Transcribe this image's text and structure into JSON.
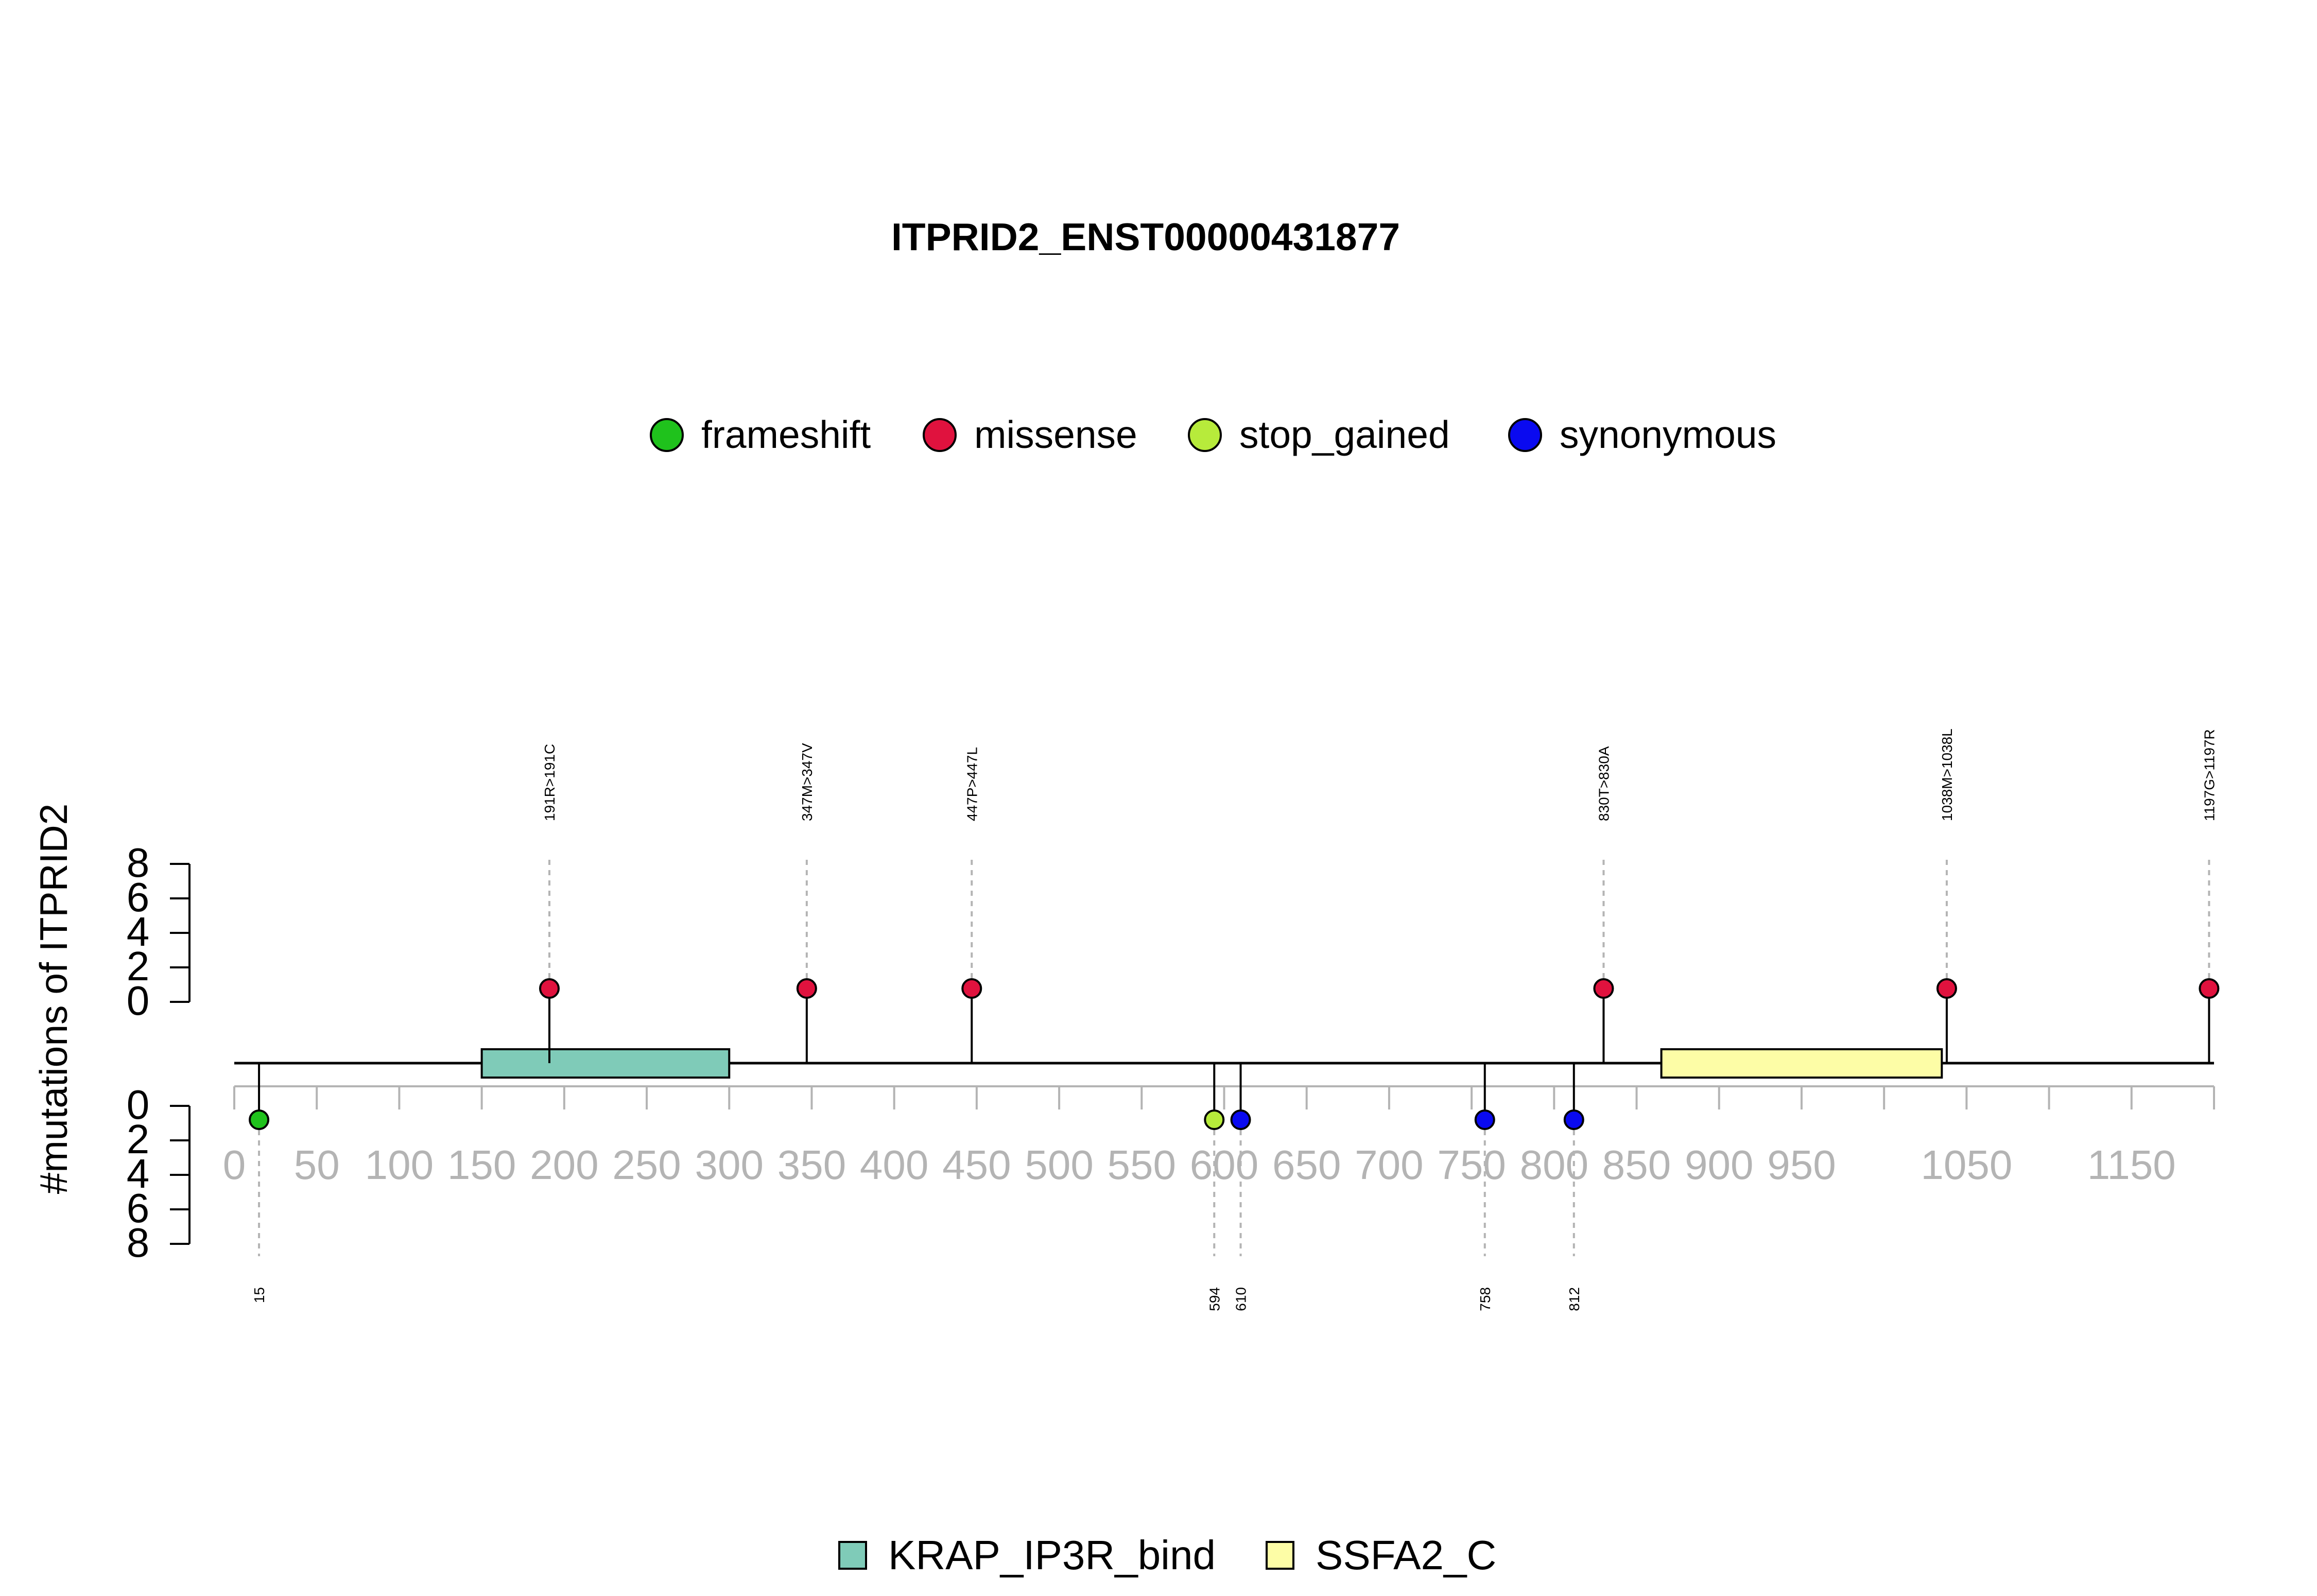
{
  "chart_data": {
    "type": "lollipop",
    "title": "ITPRID2_ENST00000431877",
    "ylabel": "#mutations of ITPRID2",
    "protein_length": 1200,
    "x_ticks": [
      0,
      50,
      100,
      150,
      200,
      250,
      300,
      350,
      400,
      450,
      500,
      550,
      600,
      650,
      700,
      750,
      800,
      850,
      900,
      950,
      1050,
      1150
    ],
    "x_minor_ticks": [
      1000,
      1100,
      1200
    ],
    "y_ticks": [
      0,
      2,
      4,
      6,
      8
    ],
    "ylim": [
      0,
      8
    ],
    "legend": [
      {
        "label": "frameshift",
        "color": "#1FC21C"
      },
      {
        "label": "missense",
        "color": "#E0123E"
      },
      {
        "label": "stop_gained",
        "color": "#B7EB3B"
      },
      {
        "label": "synonymous",
        "color": "#0A0AF0"
      }
    ],
    "domains": [
      {
        "name": "KRAP_IP3R_bind",
        "start": 150,
        "end": 300,
        "color": "#7FCBB8"
      },
      {
        "name": "SSFA2_C",
        "start": 865,
        "end": 1035,
        "color": "#FDFDA6"
      }
    ],
    "mutations_up": [
      {
        "pos": 191,
        "label": "191R>191C",
        "type": "missense",
        "count": 1
      },
      {
        "pos": 347,
        "label": "347M>347V",
        "type": "missense",
        "count": 1
      },
      {
        "pos": 447,
        "label": "447P>447L",
        "type": "missense",
        "count": 1
      },
      {
        "pos": 830,
        "label": "830T>830A",
        "type": "missense",
        "count": 1
      },
      {
        "pos": 1038,
        "label": "1038M>1038L",
        "type": "missense",
        "count": 1
      },
      {
        "pos": 1197,
        "label": "1197G>1197R",
        "type": "missense",
        "count": 1
      }
    ],
    "mutations_down": [
      {
        "pos": 15,
        "label": "15",
        "type": "frameshift",
        "count": 1
      },
      {
        "pos": 594,
        "label": "594",
        "type": "stop_gained",
        "count": 1
      },
      {
        "pos": 610,
        "label": "610",
        "type": "synonymous",
        "count": 1
      },
      {
        "pos": 758,
        "label": "758",
        "type": "synonymous",
        "count": 1
      },
      {
        "pos": 812,
        "label": "812",
        "type": "synonymous",
        "count": 1
      }
    ]
  }
}
